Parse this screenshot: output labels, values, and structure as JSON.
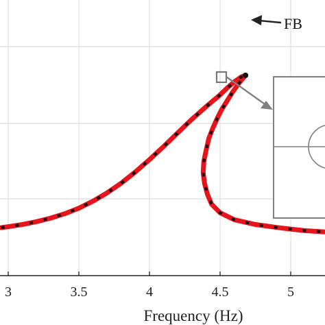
{
  "chart_data": {
    "type": "line",
    "title": "",
    "xlabel": "Frequency (Hz)",
    "ylabel": "",
    "xlim": [
      2.95,
      5.25
    ],
    "xticks": [
      3,
      3.5,
      4,
      4.5,
      5
    ],
    "xtick_labels": [
      "3",
      "3.5",
      "4",
      "4.5",
      "5"
    ],
    "grid": true,
    "series": [
      {
        "style": "red solid with black dashes",
        "color_main": "#e8141b",
        "color_dash": "#111111",
        "points": [
          [
            2.95,
            0.338
          ],
          [
            3.0,
            0.333
          ],
          [
            3.1,
            0.322
          ],
          [
            3.2,
            0.308
          ],
          [
            3.3,
            0.29
          ],
          [
            3.4,
            0.268
          ],
          [
            3.5,
            0.24
          ],
          [
            3.6,
            0.205
          ],
          [
            3.7,
            0.163
          ],
          [
            3.8,
            0.114
          ],
          [
            3.9,
            0.058
          ],
          [
            4.0,
            -0.004
          ],
          [
            4.1,
            -0.07
          ],
          [
            4.2,
            -0.139
          ],
          [
            4.3,
            -0.207
          ],
          [
            4.4,
            -0.27
          ],
          [
            4.5,
            -0.33
          ],
          [
            4.55,
            -0.364
          ],
          [
            4.6,
            -0.395
          ],
          [
            4.65,
            -0.42
          ],
          [
            4.68,
            -0.428
          ],
          [
            4.66,
            -0.412
          ],
          [
            4.63,
            -0.385
          ],
          [
            4.59,
            -0.345
          ],
          [
            4.55,
            -0.3
          ],
          [
            4.51,
            -0.255
          ],
          [
            4.48,
            -0.212
          ],
          [
            4.45,
            -0.165
          ],
          [
            4.42,
            -0.11
          ],
          [
            4.4,
            -0.048
          ],
          [
            4.385,
            0.005
          ],
          [
            4.38,
            0.06
          ],
          [
            4.39,
            0.115
          ],
          [
            4.41,
            0.17
          ],
          [
            4.44,
            0.22
          ],
          [
            4.5,
            0.263
          ],
          [
            4.6,
            0.298
          ],
          [
            4.75,
            0.322
          ],
          [
            4.9,
            0.337
          ],
          [
            5.0,
            0.345
          ],
          [
            5.1,
            0.353
          ],
          [
            5.25,
            0.36
          ]
        ]
      }
    ],
    "annotations": [
      {
        "text": "FB",
        "target": [
          4.68,
          -0.428
        ]
      }
    ],
    "zoom_marker": {
      "x": 4.51,
      "y": -0.265
    }
  }
}
